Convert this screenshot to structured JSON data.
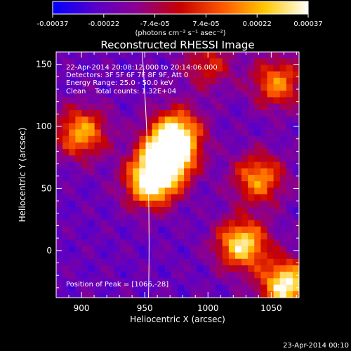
{
  "chart_data": {
    "type": "heatmap",
    "title": "Reconstructed RHESSI Image",
    "xlabel": "Heliocentric X (arcsec)",
    "ylabel": "Heliocentric Y (arcsec)",
    "xlim": [
      880,
      1072
    ],
    "ylim": [
      -38,
      160
    ],
    "x_ticks": [
      900,
      950,
      1000,
      1050
    ],
    "x_tick_labels": [
      "900",
      "950",
      "1000",
      "1050"
    ],
    "y_ticks": [
      0,
      50,
      100,
      150
    ],
    "y_tick_labels": [
      "0",
      "50",
      "100",
      "150"
    ],
    "colorbar": {
      "vmin": -0.00037,
      "vmax": 0.00037,
      "tick_labels": [
        "-0.00037",
        "-0.00022",
        "-7.4e-05",
        "7.4e-05",
        "0.00022",
        "0.00037"
      ],
      "units_label": "(photons cm⁻² s⁻¹ asec⁻²)",
      "colors": [
        "#0000ff",
        "#5a00c8",
        "#8c0090",
        "#c80000",
        "#ff5a00",
        "#ffc800",
        "#ffffff"
      ]
    },
    "annotations": [
      "22-Apr-2014 20:08:12.000 to 20:14:06.000",
      "Detectors: 3F 5F 6F 7F 8F 9F, Att 0",
      "Energy Range: 25.0 - 50.0 keV",
      "Clean    Total counts: 1.32E+04"
    ],
    "peak_label": "Position of Peak = [1066,-28]",
    "peak_position": [
      1066,
      -28
    ],
    "limb_x_arcsec": 950,
    "emission_sources": [
      {
        "x": 968,
        "y": 75,
        "amp": 1.3
      },
      {
        "x": 955,
        "y": 55,
        "amp": 1.1
      },
      {
        "x": 975,
        "y": 95,
        "amp": 0.9
      },
      {
        "x": 900,
        "y": 95,
        "amp": 0.8
      },
      {
        "x": 1027,
        "y": 5,
        "amp": 1.0
      },
      {
        "x": 1040,
        "y": 58,
        "amp": 0.75
      },
      {
        "x": 1055,
        "y": 135,
        "amp": 0.7
      },
      {
        "x": 1062,
        "y": -28,
        "amp": 1.1
      },
      {
        "x": 1000,
        "y": 150,
        "amp": 0.45
      }
    ]
  },
  "footer": {
    "timestamp": "23-Apr-2014 00:10"
  }
}
